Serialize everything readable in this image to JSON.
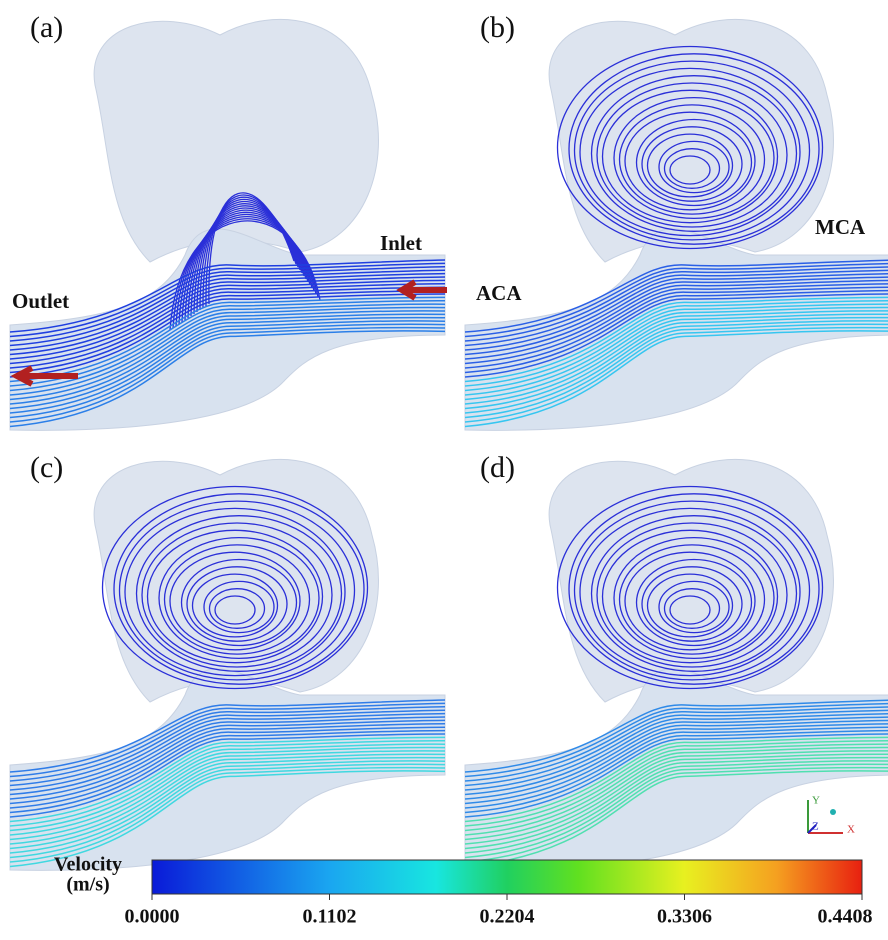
{
  "panels": [
    {
      "label": "(a)",
      "annotations": [
        "Inlet",
        "Outlet"
      ]
    },
    {
      "label": "(b)",
      "annotations": [
        "MCA",
        "ACA"
      ]
    },
    {
      "label": "(c)"
    },
    {
      "label": "(d)"
    }
  ],
  "axes_triad": {
    "labels": [
      "Y",
      "Z",
      "X"
    ]
  },
  "colorbar": {
    "title": [
      "Velocity",
      "(m/s)"
    ],
    "lim": [
      0,
      0.4408
    ],
    "ticks": [
      {
        "value": 0,
        "label": "0.0000"
      },
      {
        "value": 0.1102,
        "label": "0.1102"
      },
      {
        "value": 0.2204,
        "label": "0.2204"
      },
      {
        "value": 0.3306,
        "label": "0.3306"
      },
      {
        "value": 0.4408,
        "label": "0.4408"
      }
    ]
  }
}
